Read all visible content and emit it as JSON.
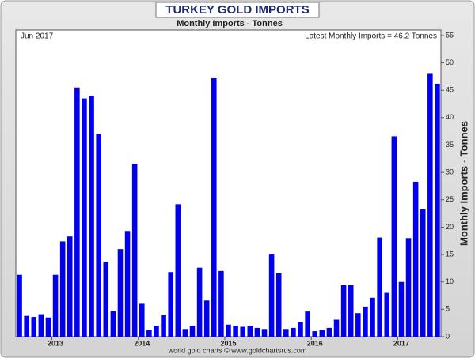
{
  "chart_data": {
    "type": "bar",
    "title": "TURKEY GOLD IMPORTS",
    "subtitle": "Monthly Imports - Tonnes",
    "date_label": "Jun 2017",
    "annotation": "Latest Monthly Imports = 46.2 Tonnes",
    "y_axis_label": "Monthly Imports - Tonnes",
    "footer": "world gold charts © www.goldchartsrus.com",
    "color": "#0000ee",
    "categories": [
      null,
      null,
      null,
      null,
      null,
      "2013",
      null,
      null,
      null,
      null,
      null,
      null,
      null,
      null,
      null,
      null,
      null,
      "2014",
      null,
      null,
      null,
      null,
      null,
      null,
      null,
      null,
      null,
      null,
      null,
      "2015",
      null,
      null,
      null,
      null,
      null,
      null,
      null,
      null,
      null,
      null,
      null,
      "2016",
      null,
      null,
      null,
      null,
      null,
      null,
      null,
      null,
      null,
      null,
      null,
      "2017",
      null,
      null,
      null,
      null,
      null
    ],
    "values": [
      11.3,
      3.8,
      3.6,
      4.1,
      3.5,
      11.3,
      17.4,
      18.3,
      45.5,
      43.5,
      44,
      37,
      13.6,
      4.7,
      16,
      19.3,
      31.6,
      6,
      1.2,
      2,
      4,
      11.8,
      24.2,
      1.4,
      2,
      12.6,
      6.6,
      47.2,
      12,
      2.2,
      2,
      1.8,
      2,
      1.6,
      1.4,
      15,
      11.6,
      1.4,
      1.6,
      2.6,
      4.6,
      1,
      1.2,
      1.6,
      3.1,
      9.5,
      9.5,
      4.3,
      5.5,
      7.1,
      18.1,
      8,
      36.6,
      10,
      18,
      28.3,
      23.3,
      48,
      46.2
    ],
    "ylim": [
      0,
      56
    ],
    "yticks": [
      0,
      5,
      10,
      15,
      20,
      25,
      30,
      35,
      40,
      45,
      50,
      55
    ]
  }
}
